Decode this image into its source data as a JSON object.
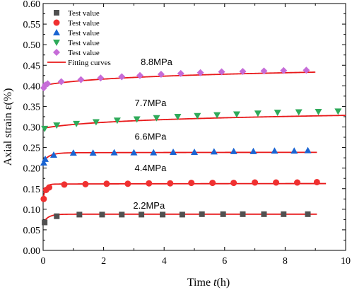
{
  "chart_data": {
    "type": "scatter",
    "xlabel_prefix": "Time ",
    "xlabel_var": "t",
    "xlabel_suffix": "(h)",
    "ylabel": "Axial strain ε(%)",
    "xlim": [
      0,
      10
    ],
    "ylim": [
      0,
      0.6
    ],
    "x_ticks": [
      "0",
      "2",
      "4",
      "6",
      "8",
      "10"
    ],
    "y_ticks": [
      "0.00",
      "0.05",
      "0.10",
      "0.15",
      "0.20",
      "0.25",
      "0.30",
      "0.35",
      "0.40",
      "0.45",
      "0.50",
      "0.55",
      "0.60"
    ],
    "grid": false,
    "legend_position": "top-left",
    "fit_label": "Fitting curves",
    "fit_color": "#e8191a",
    "series": [
      {
        "name": "Test value",
        "stress_label": "2.2MPa",
        "marker": "square",
        "color": "#505050",
        "x": [
          0.05,
          0.45,
          1.2,
          1.95,
          2.6,
          3.25,
          3.95,
          4.6,
          5.25,
          5.95,
          6.6,
          7.3,
          7.95,
          8.75
        ],
        "y": [
          0.068,
          0.083,
          0.087,
          0.087,
          0.087,
          0.087,
          0.087,
          0.087,
          0.088,
          0.088,
          0.088,
          0.088,
          0.088,
          0.088
        ],
        "fit": {
          "a": 0.067,
          "b": 0.021,
          "k": 6
        }
      },
      {
        "name": "Test value",
        "stress_label": "4.4MPa",
        "marker": "circle",
        "color": "#f03030",
        "x": [
          0.02,
          0.1,
          0.2,
          0.7,
          1.4,
          2.1,
          2.8,
          3.5,
          4.2,
          4.9,
          5.6,
          6.3,
          7.0,
          7.7,
          8.4,
          9.05
        ],
        "y": [
          0.125,
          0.147,
          0.153,
          0.16,
          0.161,
          0.162,
          0.162,
          0.163,
          0.163,
          0.164,
          0.164,
          0.164,
          0.165,
          0.165,
          0.165,
          0.166
        ],
        "fit": {
          "a": 0.125,
          "b": 0.036,
          "k": 14,
          "c": 0.0006
        }
      },
      {
        "name": "Test value",
        "stress_label": "6.6MPa",
        "marker": "triangle-up",
        "color": "#1a64d2",
        "x": [
          0.02,
          0.07,
          0.35,
          1.0,
          1.65,
          2.35,
          3.0,
          3.65,
          4.3,
          5.0,
          5.65,
          6.3,
          6.95,
          7.65,
          8.3,
          8.75
        ],
        "y": [
          0.213,
          0.222,
          0.232,
          0.237,
          0.237,
          0.238,
          0.238,
          0.238,
          0.239,
          0.239,
          0.24,
          0.241,
          0.241,
          0.242,
          0.242,
          0.243
        ],
        "fit": {
          "a": 0.215,
          "b": 0.022,
          "k": 5,
          "c": 0.0006
        }
      },
      {
        "name": "Test value",
        "stress_label": "7.7MPa",
        "marker": "triangle-down",
        "color": "#2eaa5a",
        "x": [
          0.05,
          0.45,
          1.1,
          1.75,
          2.45,
          3.1,
          3.75,
          4.45,
          5.1,
          5.75,
          6.4,
          7.1,
          7.75,
          8.45,
          9.1,
          9.75
        ],
        "y": [
          0.296,
          0.304,
          0.308,
          0.312,
          0.316,
          0.319,
          0.322,
          0.325,
          0.327,
          0.329,
          0.331,
          0.333,
          0.335,
          0.336,
          0.337,
          0.338
        ],
        "fit": {
          "a": 0.297,
          "c": 0.013
        }
      },
      {
        "name": "Test value",
        "stress_label": "8.8MPa",
        "marker": "diamond",
        "color": "#c66cd8",
        "x": [
          0.02,
          0.07,
          0.15,
          0.6,
          1.25,
          1.9,
          2.6,
          3.2,
          3.9,
          4.55,
          5.2,
          5.9,
          6.6,
          7.3,
          7.95,
          8.7
        ],
        "y": [
          0.395,
          0.402,
          0.405,
          0.41,
          0.415,
          0.419,
          0.422,
          0.425,
          0.428,
          0.43,
          0.432,
          0.434,
          0.435,
          0.436,
          0.437,
          0.438
        ],
        "fit": {
          "a": 0.401,
          "c": 0.014
        }
      }
    ]
  }
}
